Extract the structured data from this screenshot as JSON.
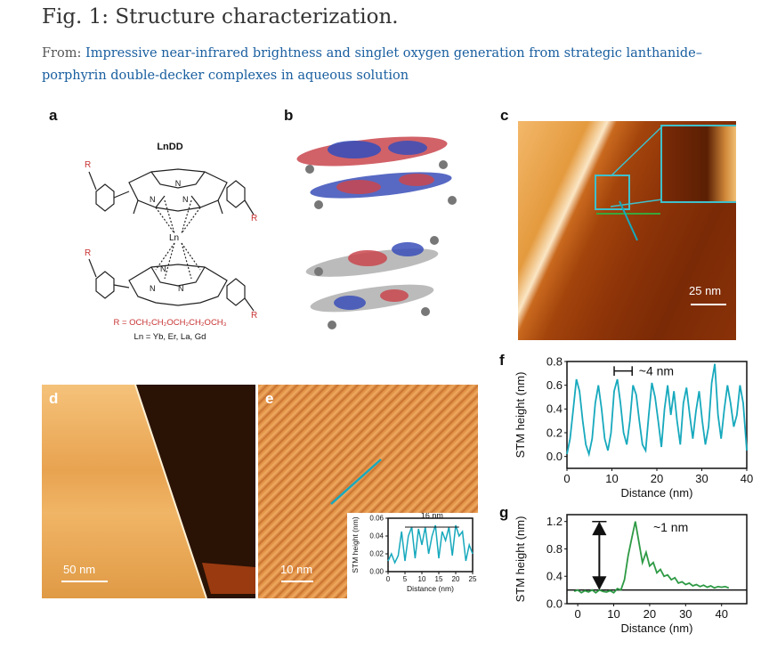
{
  "figure": {
    "title": "Fig. 1: Structure characterization.",
    "from_prefix": "From:",
    "from_link": "Impressive near-infrared brightness and singlet oxygen generation from strategic lanthanide–porphyrin double-decker complexes in aqueous solution"
  },
  "panels": {
    "a": {
      "label": "a",
      "molecule_name": "LnDD",
      "r_definition": "R = OCH₂CH₂OCH₂CH₂OCH₃",
      "ln_definition": "Ln = Yb, Er, La, Gd",
      "atom_R": "R",
      "atom_N": "N",
      "atom_Ln": "Ln"
    },
    "b": {
      "label": "b"
    },
    "c": {
      "label": "c",
      "scalebar": "25 nm"
    },
    "d": {
      "label": "d",
      "scalebar": "50 nm"
    },
    "e": {
      "label": "e",
      "scalebar": "10 nm"
    },
    "f": {
      "label": "f",
      "annotation": "~4 nm"
    },
    "g": {
      "label": "g",
      "annotation": "~1 nm"
    }
  },
  "colors": {
    "link": "#1a5fa0",
    "stm_cyan": "#17a9bd",
    "stm_green": "#2e9a45",
    "afm_dark": "#7a2a06",
    "afm_light": "#f2b366"
  },
  "chart_data": [
    {
      "panel": "e-inset",
      "type": "line",
      "title": "16 nm",
      "xlabel": "Distance (nm)",
      "ylabel": "STM height (nm)",
      "xlim": [
        0,
        25
      ],
      "ylim": [
        0,
        0.06
      ],
      "xticks": [
        "0",
        "5",
        "10",
        "15",
        "20",
        "25"
      ],
      "yticks": [
        "0.00",
        "0.02",
        "0.04",
        "0.06"
      ],
      "series": [
        {
          "x": [
            0,
            1,
            2,
            3,
            4,
            5,
            6,
            7,
            8,
            9,
            10,
            11,
            12,
            13,
            14,
            15,
            16,
            17,
            18,
            19,
            20,
            21,
            22,
            23,
            24,
            25
          ],
          "y": [
            0.012,
            0.02,
            0.01,
            0.018,
            0.045,
            0.012,
            0.04,
            0.05,
            0.015,
            0.048,
            0.03,
            0.05,
            0.02,
            0.04,
            0.052,
            0.015,
            0.045,
            0.035,
            0.05,
            0.018,
            0.052,
            0.04,
            0.045,
            0.012,
            0.03,
            0.02
          ]
        }
      ]
    },
    {
      "panel": "f",
      "type": "line",
      "xlabel": "Distance (nm)",
      "ylabel": "STM height (nm)",
      "xlim": [
        0,
        40
      ],
      "ylim": [
        -0.1,
        0.8
      ],
      "xticks": [
        "0",
        "10",
        "20",
        "30",
        "40"
      ],
      "yticks": [
        "0.0",
        "0.2",
        "0.4",
        "0.6",
        "0.8"
      ],
      "series": [
        {
          "x": [
            0,
            0.7,
            1.4,
            2.1,
            2.8,
            3.5,
            4.2,
            4.9,
            5.6,
            6.3,
            7,
            7.7,
            8.4,
            9.1,
            9.8,
            10.5,
            11.2,
            11.9,
            12.6,
            13.3,
            14,
            14.7,
            15.4,
            16.1,
            16.8,
            17.5,
            18.2,
            18.9,
            19.6,
            20.3,
            21,
            21.7,
            22.4,
            23.1,
            23.8,
            24.5,
            25.2,
            25.9,
            26.6,
            27.3,
            28,
            28.7,
            29.4,
            30.1,
            30.8,
            31.5,
            32.2,
            32.9,
            33.6,
            34.3,
            35,
            35.7,
            36.4,
            37.1,
            37.8,
            38.5,
            39.2,
            40
          ],
          "y": [
            0.02,
            0.15,
            0.4,
            0.65,
            0.55,
            0.3,
            0.1,
            0.02,
            0.15,
            0.45,
            0.6,
            0.4,
            0.15,
            0.05,
            0.2,
            0.55,
            0.65,
            0.45,
            0.2,
            0.1,
            0.3,
            0.6,
            0.52,
            0.3,
            0.1,
            0.05,
            0.35,
            0.62,
            0.5,
            0.3,
            0.08,
            0.4,
            0.6,
            0.35,
            0.55,
            0.3,
            0.1,
            0.45,
            0.58,
            0.35,
            0.15,
            0.38,
            0.55,
            0.3,
            0.1,
            0.25,
            0.62,
            0.78,
            0.35,
            0.15,
            0.4,
            0.6,
            0.45,
            0.25,
            0.35,
            0.6,
            0.45,
            0.05
          ]
        }
      ]
    },
    {
      "panel": "g",
      "type": "line",
      "xlabel": "Distance (nm)",
      "ylabel": "STM height (nm)",
      "xlim": [
        -3,
        47
      ],
      "ylim": [
        0,
        1.3
      ],
      "xticks": [
        "0",
        "10",
        "20",
        "30",
        "40"
      ],
      "yticks": [
        "0.0",
        "0.4",
        "0.8",
        "1.2"
      ],
      "series": [
        {
          "x": [
            -1,
            0,
            1,
            2,
            3,
            4,
            5,
            6,
            7,
            8,
            9,
            10,
            11,
            12,
            13,
            14,
            15,
            16,
            17,
            18,
            19,
            20,
            21,
            22,
            23,
            24,
            25,
            26,
            27,
            28,
            29,
            30,
            31,
            32,
            33,
            34,
            35,
            36,
            37,
            38,
            39,
            40,
            41,
            42
          ],
          "y": [
            0.18,
            0.2,
            0.16,
            0.19,
            0.17,
            0.2,
            0.16,
            0.2,
            0.18,
            0.17,
            0.19,
            0.16,
            0.22,
            0.2,
            0.35,
            0.7,
            0.95,
            1.2,
            0.9,
            0.6,
            0.75,
            0.55,
            0.6,
            0.45,
            0.5,
            0.4,
            0.42,
            0.35,
            0.38,
            0.3,
            0.32,
            0.28,
            0.3,
            0.26,
            0.28,
            0.25,
            0.27,
            0.24,
            0.26,
            0.23,
            0.25,
            0.24,
            0.25,
            0.23
          ]
        }
      ],
      "baseline": 0.2
    }
  ]
}
